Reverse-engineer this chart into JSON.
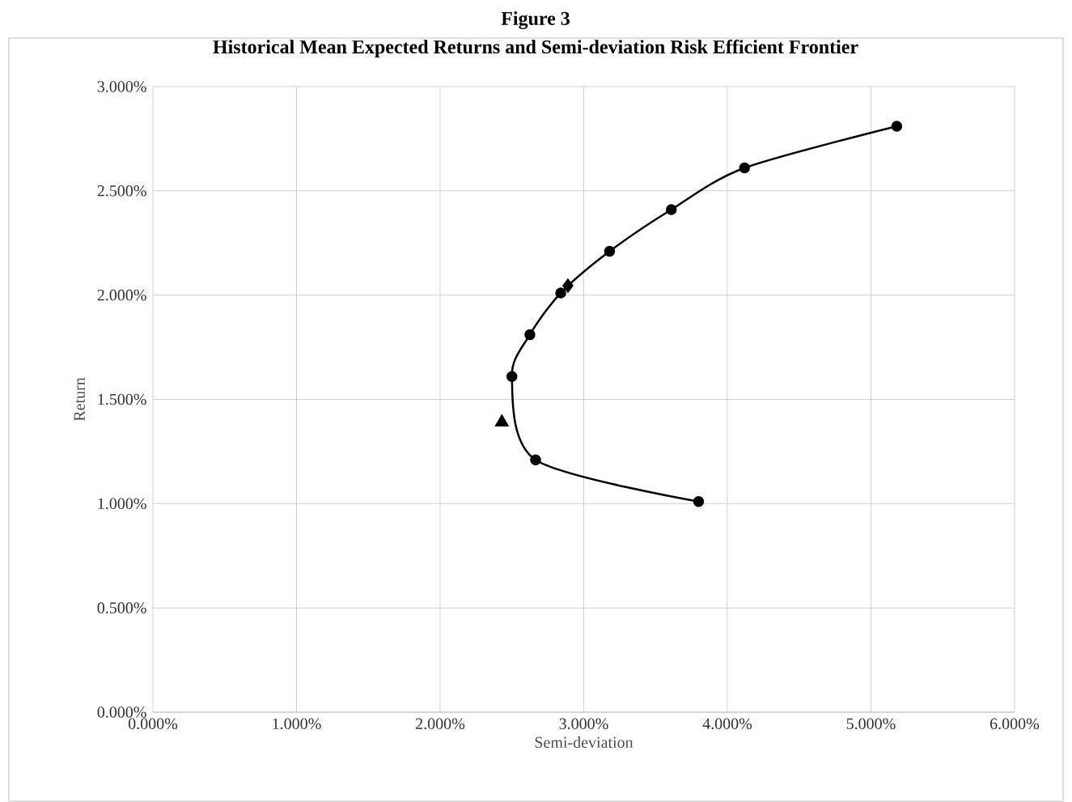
{
  "chart_data": {
    "type": "line",
    "title": "Figure 3",
    "subtitle": "Historical Mean Expected Returns and Semi-deviation Risk Efficient Frontier",
    "xlabel": "Semi-deviation",
    "ylabel": "Return",
    "series": [
      {
        "type": "line",
        "color": "#000000",
        "marker": "circle",
        "x": [
          3.8,
          2.665,
          2.5,
          2.625,
          2.84,
          3.18,
          3.61,
          4.12,
          5.18
        ],
        "values": [
          1.01,
          1.21,
          1.61,
          1.81,
          2.01,
          2.21,
          2.41,
          2.61,
          2.81
        ]
      },
      {
        "type": "scatter",
        "color": "#000000",
        "marker": "triangle",
        "x": [
          2.43
        ],
        "values": [
          1.39
        ]
      },
      {
        "type": "scatter",
        "color": "#000000",
        "marker": "diamond",
        "x": [
          2.89
        ],
        "values": [
          2.045
        ]
      }
    ],
    "xlim": [
      0,
      6
    ],
    "ylim": [
      0,
      3
    ],
    "xticks": [
      {
        "value": 0,
        "label": "0.000%"
      },
      {
        "value": 1,
        "label": "1.000%"
      },
      {
        "value": 2,
        "label": "2.000%"
      },
      {
        "value": 3,
        "label": "3.000%"
      },
      {
        "value": 4,
        "label": "4.000%"
      },
      {
        "value": 5,
        "label": "5.000%"
      },
      {
        "value": 6,
        "label": "6.000%"
      }
    ],
    "yticks": [
      {
        "value": 0,
        "label": "0.000%"
      },
      {
        "value": 0.5,
        "label": "0.500%"
      },
      {
        "value": 1,
        "label": "1.000%"
      },
      {
        "value": 1.5,
        "label": "1.500%"
      },
      {
        "value": 2,
        "label": "2.000%"
      },
      {
        "value": 2.5,
        "label": "2.500%"
      },
      {
        "value": 3,
        "label": "3.000%"
      }
    ],
    "grid": true
  }
}
